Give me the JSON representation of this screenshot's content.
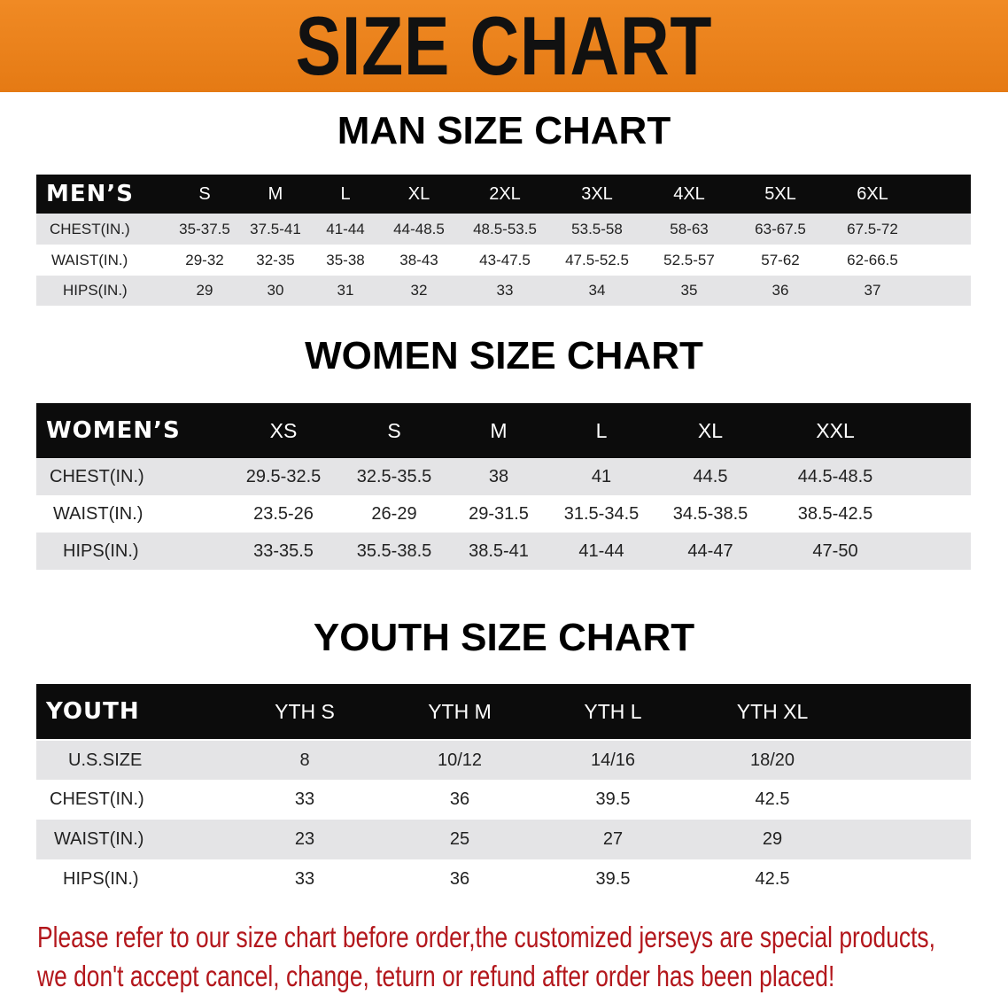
{
  "banner": {
    "title": "SIZE CHART",
    "color": "#e8801c"
  },
  "men": {
    "title": "MAN SIZE CHART",
    "header_label": "MEN’S",
    "sizes": [
      "S",
      "M",
      "L",
      "XL",
      "2XL",
      "3XL",
      "4XL",
      "5XL",
      "6XL"
    ],
    "rows": [
      {
        "label": "CHEST(IN.)",
        "values": [
          "35-37.5",
          "37.5-41",
          "41-44",
          "44-48.5",
          "48.5-53.5",
          "53.5-58",
          "58-63",
          "63-67.5",
          "67.5-72"
        ]
      },
      {
        "label": "WAIST(IN.)",
        "values": [
          "29-32",
          "32-35",
          "35-38",
          "38-43",
          "43-47.5",
          "47.5-52.5",
          "52.5-57",
          "57-62",
          "62-66.5"
        ]
      },
      {
        "label": "HIPS(IN.)",
        "values": [
          "29",
          "30",
          "31",
          "32",
          "33",
          "34",
          "35",
          "36",
          "37"
        ]
      }
    ]
  },
  "women": {
    "title": "WOMEN SIZE CHART",
    "header_label": "WOMEN’S",
    "sizes": [
      "XS",
      "S",
      "M",
      "L",
      "XL",
      "XXL"
    ],
    "rows": [
      {
        "label": "CHEST(IN.)",
        "values": [
          "29.5-32.5",
          "32.5-35.5",
          "38",
          "41",
          "44.5",
          "44.5-48.5"
        ]
      },
      {
        "label": "WAIST(IN.)",
        "values": [
          "23.5-26",
          "26-29",
          "29-31.5",
          "31.5-34.5",
          "34.5-38.5",
          "38.5-42.5"
        ]
      },
      {
        "label": "HIPS(IN.)",
        "values": [
          "33-35.5",
          "35.5-38.5",
          "38.5-41",
          "41-44",
          "44-47",
          "47-50"
        ]
      }
    ]
  },
  "youth": {
    "title": "YOUTH SIZE CHART",
    "header_label": "YOUTH",
    "sizes": [
      "YTH S",
      "YTH M",
      "YTH L",
      "YTH XL"
    ],
    "rows": [
      {
        "label": "U.S.SIZE",
        "values": [
          "8",
          "10/12",
          "14/16",
          "18/20"
        ]
      },
      {
        "label": "CHEST(IN.)",
        "values": [
          "33",
          "36",
          "39.5",
          "42.5"
        ]
      },
      {
        "label": "WAIST(IN.)",
        "values": [
          "23",
          "25",
          "27",
          "29"
        ]
      },
      {
        "label": "HIPS(IN.)",
        "values": [
          "33",
          "36",
          "39.5",
          "42.5"
        ]
      }
    ]
  },
  "note": {
    "line1": "Please refer to our size chart before order,the customized jerseys are special products,",
    "line2": "we don't accept cancel, change, teturn or refund after order has been placed!",
    "color": "#b3171c"
  }
}
